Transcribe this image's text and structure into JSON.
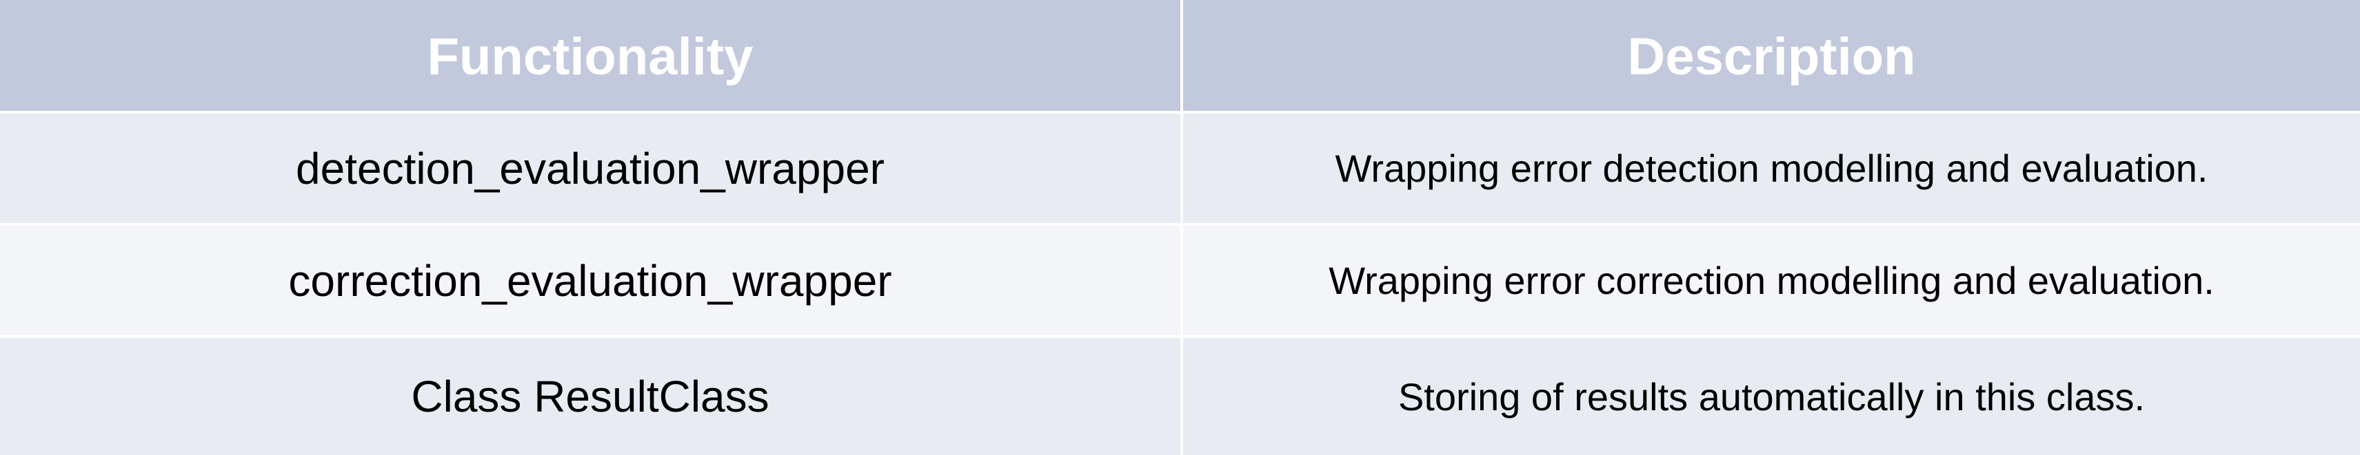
{
  "table": {
    "headers": [
      "Functionality",
      "Description"
    ],
    "rows": [
      {
        "functionality": "detection_evaluation_wrapper",
        "description": "Wrapping error detection modelling and evaluation."
      },
      {
        "functionality": "correction_evaluation_wrapper",
        "description": "Wrapping error correction modelling and evaluation."
      },
      {
        "functionality": "Class ResultClass",
        "description": "Storing of results automatically in this class."
      }
    ],
    "colors": {
      "header_background": "#c2c9dd",
      "header_text": "#ffffff",
      "row_odd_background": "#e8ebf2",
      "row_even_background": "#f4f5f9",
      "grid_lines": "#ffffff"
    }
  }
}
